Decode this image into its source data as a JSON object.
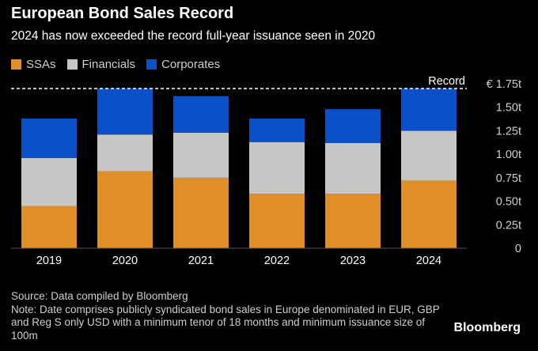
{
  "title": "European Bond Sales Record",
  "subtitle": "2024 has now exceeded the record full-year issuance seen in 2020",
  "legend": [
    {
      "label": "SSAs",
      "color": "#e08f28"
    },
    {
      "label": "Financials",
      "color": "#c6c6c6"
    },
    {
      "label": "Corporates",
      "color": "#0a50c8"
    }
  ],
  "chart_data": {
    "type": "bar",
    "stacked": true,
    "categories": [
      "2019",
      "2020",
      "2021",
      "2022",
      "2023",
      "2024"
    ],
    "series": [
      {
        "name": "SSAs",
        "color": "#e08f28",
        "values": [
          0.45,
          0.82,
          0.75,
          0.58,
          0.58,
          0.72
        ]
      },
      {
        "name": "Financials",
        "color": "#c6c6c6",
        "values": [
          0.51,
          0.39,
          0.48,
          0.55,
          0.54,
          0.53
        ]
      },
      {
        "name": "Corporates",
        "color": "#0a50c8",
        "values": [
          0.42,
          0.49,
          0.39,
          0.25,
          0.36,
          0.45
        ]
      }
    ],
    "ylim": [
      0,
      1.75
    ],
    "yticks": [
      0,
      0.25,
      0.5,
      0.75,
      1.0,
      1.25,
      1.5,
      1.75
    ],
    "ytick_labels": [
      "0",
      "0.25t",
      "0.50t",
      "0.75t",
      "1.00t",
      "1.25t",
      "1.50t",
      "€ 1.75t"
    ],
    "y_axis_side": "right",
    "reference_line": {
      "value": 1.7,
      "label": "Record",
      "style": "dashed"
    },
    "grid": false,
    "legend_position": "top-left"
  },
  "footer": {
    "source": "Source: Data compiled by Bloomberg",
    "note": "Note: Date comprises publicly syndicated bond sales in Europe denominated in EUR, GBP and Reg S only USD with a minimum tenor of 18 months and minimum issuance size of 100m"
  },
  "brand": "Bloomberg"
}
